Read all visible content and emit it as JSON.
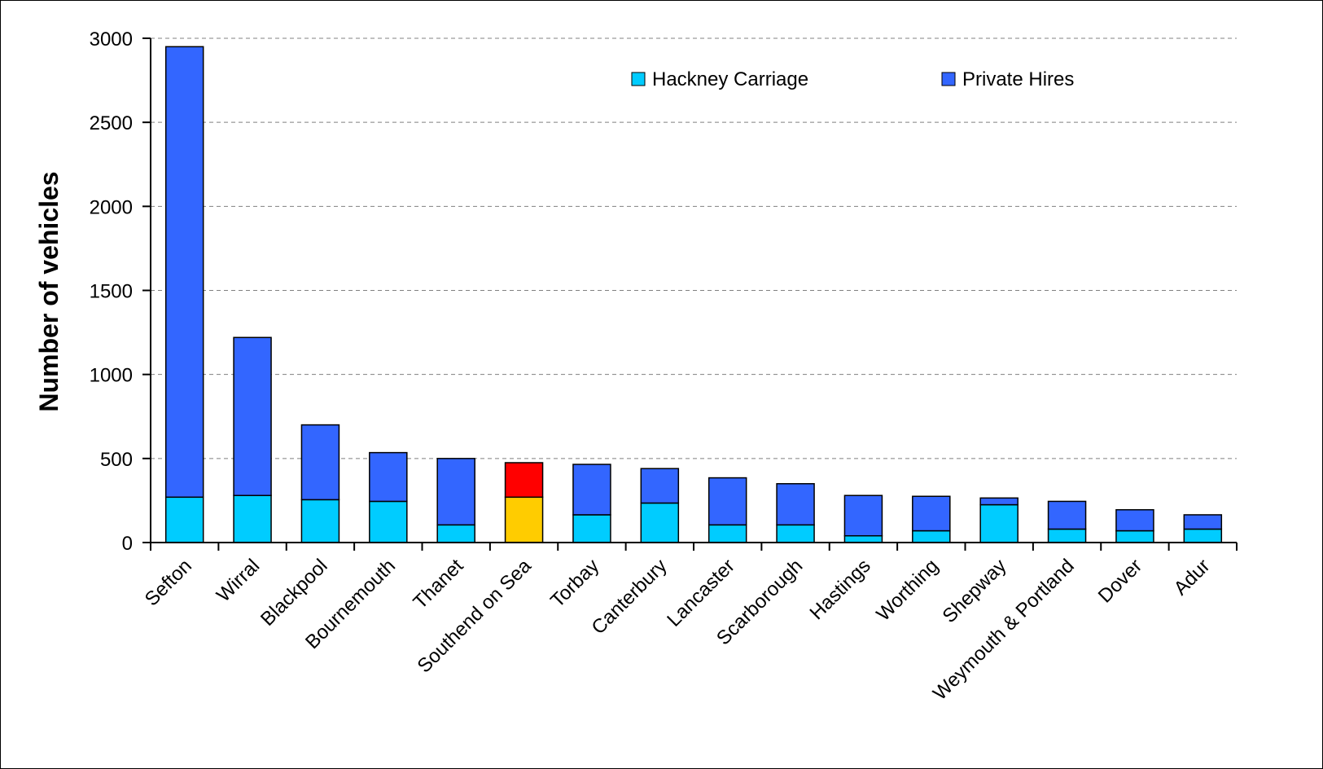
{
  "chart_data": {
    "type": "bar",
    "stacked": true,
    "title": "",
    "xlabel": "",
    "ylabel": "Number of vehicles",
    "ylim": [
      0,
      3000
    ],
    "yticks": [
      0,
      500,
      1000,
      1500,
      2000,
      2500,
      3000
    ],
    "grid": true,
    "legend_position": "top-right",
    "categories": [
      "Sefton",
      "Wirral",
      "Blackpool",
      "Bournemouth",
      "Thanet",
      "Southend on Sea",
      "Torbay",
      "Canterbury",
      "Lancaster",
      "Scarborough",
      "Hastings",
      "Worthing",
      "Shepway",
      "Weymouth & Portland",
      "Dover",
      "Adur"
    ],
    "series": [
      {
        "name": "Hackney Carriage",
        "color": "#00CCFF",
        "values": [
          270,
          280,
          255,
          245,
          105,
          270,
          165,
          235,
          105,
          105,
          40,
          70,
          225,
          80,
          70,
          80
        ]
      },
      {
        "name": "Private Hires",
        "color": "#3366FF",
        "values": [
          2680,
          940,
          445,
          290,
          395,
          205,
          300,
          205,
          280,
          245,
          240,
          205,
          40,
          165,
          125,
          85
        ]
      }
    ],
    "highlight": {
      "category": "Southend on Sea",
      "colors": {
        "Hackney Carriage": "#FFCC00",
        "Private Hires": "#FF0000"
      }
    }
  }
}
